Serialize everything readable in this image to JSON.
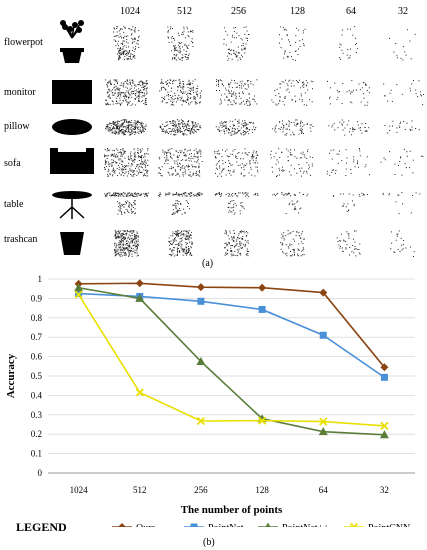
{
  "panel_a": {
    "column_headers": [
      "1024",
      "512",
      "256",
      "128",
      "64",
      "32"
    ],
    "row_labels": [
      "flowerpot",
      "monitor",
      "pillow",
      "sofa",
      "table",
      "trashcan"
    ],
    "caption": "(a)"
  },
  "panel_b_caption": "(b)",
  "legend_title": "LEGEND",
  "chart_data": {
    "type": "line",
    "ylabel": "Accuracy",
    "xlabel": "The number of points",
    "categories": [
      "1024",
      "512",
      "256",
      "128",
      "64",
      "32"
    ],
    "ylim": [
      0,
      1
    ],
    "yticks": [
      0,
      0.1,
      0.2,
      0.3,
      0.4,
      0.5,
      0.6,
      0.7,
      0.8,
      0.9,
      1
    ],
    "grid": "horizontal",
    "legend_position": "bottom",
    "series": [
      {
        "name": "Ours",
        "color": "#8B4513",
        "marker": "diamond",
        "values": [
          0.975,
          0.978,
          0.958,
          0.955,
          0.93,
          0.545
        ]
      },
      {
        "name": "PointNet",
        "color": "#4A90D9",
        "marker": "square",
        "values": [
          0.925,
          0.91,
          0.885,
          0.843,
          0.71,
          0.493
        ]
      },
      {
        "name": "PointNet++",
        "color": "#5A7D3A",
        "marker": "triangle",
        "values": [
          0.955,
          0.9,
          0.575,
          0.28,
          0.213,
          0.197
        ]
      },
      {
        "name": "PointCNN",
        "color": "#E8E000",
        "marker": "x",
        "values": [
          0.92,
          0.415,
          0.268,
          0.27,
          0.265,
          0.243
        ]
      }
    ]
  }
}
